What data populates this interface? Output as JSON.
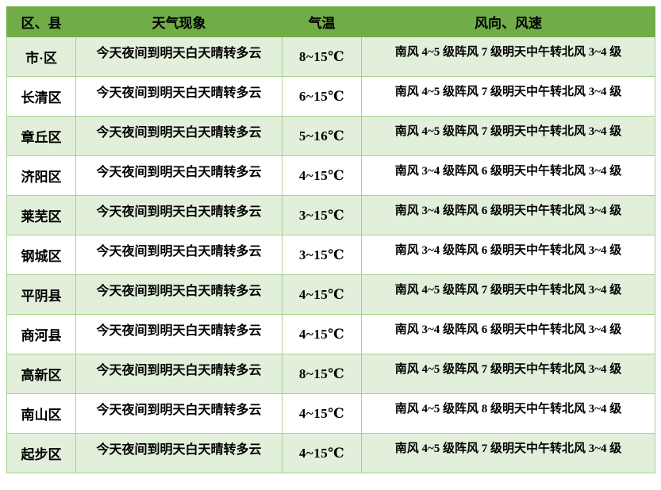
{
  "colors": {
    "header_bg": "#70AD47",
    "row_alt_bg": "#E2EFDA",
    "row_bg": "#FFFFFF",
    "border": "#A9D08E",
    "text": "#000000"
  },
  "table": {
    "columns": {
      "district": "区、县",
      "weather": "天气现象",
      "temperature": "气温",
      "wind": "风向、风速"
    },
    "rows": [
      {
        "district": "市·区",
        "weather": "今天夜间到明天白天晴转多云",
        "temperature": "8~15℃",
        "wind": "南风 4~5 级阵风 7 级明天中午转北风 3~4 级"
      },
      {
        "district": "长清区",
        "weather": "今天夜间到明天白天晴转多云",
        "temperature": "6~15℃",
        "wind": "南风 4~5 级阵风 7 级明天中午转北风 3~4 级"
      },
      {
        "district": "章丘区",
        "weather": "今天夜间到明天白天晴转多云",
        "temperature": "5~16℃",
        "wind": "南风 4~5 级阵风 7 级明天中午转北风 3~4 级"
      },
      {
        "district": "济阳区",
        "weather": "今天夜间到明天白天晴转多云",
        "temperature": "4~15℃",
        "wind": "南风 3~4 级阵风 6 级明天中午转北风 3~4 级"
      },
      {
        "district": "莱芜区",
        "weather": "今天夜间到明天白天晴转多云",
        "temperature": "3~15℃",
        "wind": "南风 3~4 级阵风 6 级明天中午转北风 3~4 级"
      },
      {
        "district": "钢城区",
        "weather": "今天夜间到明天白天晴转多云",
        "temperature": "3~15℃",
        "wind": "南风 3~4 级阵风 6 级明天中午转北风 3~4 级"
      },
      {
        "district": "平阴县",
        "weather": "今天夜间到明天白天晴转多云",
        "temperature": "4~15℃",
        "wind": "南风 4~5 级阵风 7 级明天中午转北风 3~4 级"
      },
      {
        "district": "商河县",
        "weather": "今天夜间到明天白天晴转多云",
        "temperature": "4~15℃",
        "wind": "南风 3~4 级阵风 6 级明天中午转北风 3~4 级"
      },
      {
        "district": "高新区",
        "weather": "今天夜间到明天白天晴转多云",
        "temperature": "8~15℃",
        "wind": "南风 4~5 级阵风 7 级明天中午转北风 3~4 级"
      },
      {
        "district": "南山区",
        "weather": "今天夜间到明天白天晴转多云",
        "temperature": "4~15℃",
        "wind": "南风 4~5 级阵风 8 级明天中午转北风 3~4 级"
      },
      {
        "district": "起步区",
        "weather": "今天夜间到明天白天晴转多云",
        "temperature": "4~15℃",
        "wind": "南风 4~5 级阵风 7 级明天中午转北风 3~4 级"
      }
    ]
  }
}
